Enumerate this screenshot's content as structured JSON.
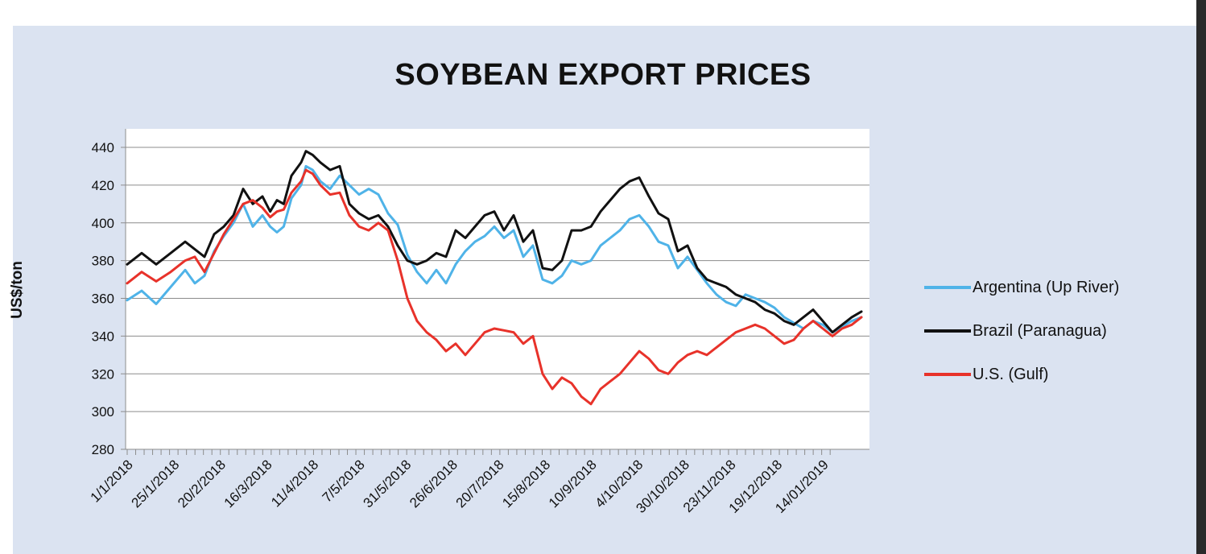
{
  "chart_data": {
    "type": "line",
    "title": "SOYBEAN EXPORT PRICES",
    "ylabel": "US$/ton",
    "xlabel": "",
    "ylim": [
      280,
      440
    ],
    "yticks": [
      280,
      300,
      320,
      340,
      360,
      380,
      400,
      420,
      440
    ],
    "grid": "horizontal",
    "legend_position": "right",
    "x_tick_labels": [
      "1/1/2018",
      "25/1/2018",
      "20/2/2018",
      "16/3/2018",
      "11/4/2018",
      "7/5/2018",
      "31/5/2018",
      "26/6/2018",
      "20/7/2018",
      "15/8/2018",
      "10/9/2018",
      "4/10/2018",
      "30/10/2018",
      "23/11/2018",
      "19/12/2018",
      "14/01/2019"
    ],
    "x": [
      "1/1/2018",
      "25/1/2018",
      "20/2/2018",
      "16/3/2018",
      "11/4/2018",
      "7/5/2018",
      "31/5/2018",
      "26/6/2018",
      "20/7/2018",
      "15/8/2018",
      "10/9/2018",
      "4/10/2018",
      "30/10/2018",
      "23/11/2018",
      "19/12/2018",
      "14/01/2019"
    ],
    "series": [
      {
        "name": "Argentina (Up River)",
        "color": "#4fb3e8",
        "values": [
          [
            0,
            359
          ],
          [
            1.5,
            364
          ],
          [
            3,
            357
          ],
          [
            4.5,
            366
          ],
          [
            6,
            375
          ],
          [
            7,
            368
          ],
          [
            8,
            372
          ],
          [
            9,
            385
          ],
          [
            10,
            393
          ],
          [
            11,
            400
          ],
          [
            12,
            410
          ],
          [
            13,
            398
          ],
          [
            14,
            404
          ],
          [
            14.8,
            398
          ],
          [
            15.5,
            395
          ],
          [
            16.2,
            398
          ],
          [
            17,
            413
          ],
          [
            18,
            420
          ],
          [
            18.5,
            430
          ],
          [
            19.2,
            428
          ],
          [
            20,
            422
          ],
          [
            21,
            418
          ],
          [
            22,
            425
          ],
          [
            23,
            420
          ],
          [
            24,
            415
          ],
          [
            25,
            418
          ],
          [
            26,
            415
          ],
          [
            27,
            405
          ],
          [
            28,
            399
          ],
          [
            29,
            383
          ],
          [
            30,
            374
          ],
          [
            31,
            368
          ],
          [
            32,
            375
          ],
          [
            33,
            368
          ],
          [
            34,
            378
          ],
          [
            35,
            385
          ],
          [
            36,
            390
          ],
          [
            37,
            393
          ],
          [
            38,
            398
          ],
          [
            39,
            392
          ],
          [
            40,
            396
          ],
          [
            41,
            382
          ],
          [
            42,
            388
          ],
          [
            43,
            370
          ],
          [
            44,
            368
          ],
          [
            45,
            372
          ],
          [
            46,
            380
          ],
          [
            47,
            378
          ],
          [
            48,
            380
          ],
          [
            49,
            388
          ],
          [
            50,
            392
          ],
          [
            51,
            396
          ],
          [
            52,
            402
          ],
          [
            53,
            404
          ],
          [
            54,
            398
          ],
          [
            55,
            390
          ],
          [
            56,
            388
          ],
          [
            57,
            376
          ],
          [
            58,
            382
          ],
          [
            59,
            375
          ],
          [
            60,
            368
          ],
          [
            61,
            362
          ],
          [
            62,
            358
          ],
          [
            63,
            356
          ],
          [
            64,
            362
          ],
          [
            65,
            360
          ],
          [
            66,
            358
          ],
          [
            67,
            355
          ],
          [
            68,
            350
          ],
          [
            69,
            347
          ],
          [
            70,
            344
          ],
          [
            71,
            348
          ],
          [
            72,
            346
          ],
          [
            73,
            342
          ],
          [
            74,
            345
          ],
          [
            75,
            348
          ],
          [
            76,
            350
          ]
        ]
      },
      {
        "name": "Brazil (Paranagua)",
        "color": "#111111",
        "values": [
          [
            0,
            378
          ],
          [
            1.5,
            384
          ],
          [
            3,
            378
          ],
          [
            4.5,
            384
          ],
          [
            6,
            390
          ],
          [
            7,
            386
          ],
          [
            8,
            382
          ],
          [
            9,
            394
          ],
          [
            10,
            398
          ],
          [
            11,
            404
          ],
          [
            12,
            418
          ],
          [
            13,
            410
          ],
          [
            14,
            414
          ],
          [
            14.8,
            406
          ],
          [
            15.5,
            412
          ],
          [
            16.2,
            410
          ],
          [
            17,
            425
          ],
          [
            18,
            432
          ],
          [
            18.5,
            438
          ],
          [
            19.2,
            436
          ],
          [
            20,
            432
          ],
          [
            21,
            428
          ],
          [
            22,
            430
          ],
          [
            23,
            410
          ],
          [
            24,
            405
          ],
          [
            25,
            402
          ],
          [
            26,
            404
          ],
          [
            27,
            398
          ],
          [
            28,
            388
          ],
          [
            29,
            380
          ],
          [
            30,
            378
          ],
          [
            31,
            380
          ],
          [
            32,
            384
          ],
          [
            33,
            382
          ],
          [
            34,
            396
          ],
          [
            35,
            392
          ],
          [
            36,
            398
          ],
          [
            37,
            404
          ],
          [
            38,
            406
          ],
          [
            39,
            396
          ],
          [
            40,
            404
          ],
          [
            41,
            390
          ],
          [
            42,
            396
          ],
          [
            43,
            376
          ],
          [
            44,
            375
          ],
          [
            45,
            380
          ],
          [
            46,
            396
          ],
          [
            47,
            396
          ],
          [
            48,
            398
          ],
          [
            49,
            406
          ],
          [
            50,
            412
          ],
          [
            51,
            418
          ],
          [
            52,
            422
          ],
          [
            53,
            424
          ],
          [
            54,
            414
          ],
          [
            55,
            405
          ],
          [
            56,
            402
          ],
          [
            57,
            385
          ],
          [
            58,
            388
          ],
          [
            59,
            376
          ],
          [
            60,
            370
          ],
          [
            61,
            368
          ],
          [
            62,
            366
          ],
          [
            63,
            362
          ],
          [
            64,
            360
          ],
          [
            65,
            358
          ],
          [
            66,
            354
          ],
          [
            67,
            352
          ],
          [
            68,
            348
          ],
          [
            69,
            346
          ],
          [
            70,
            350
          ],
          [
            71,
            354
          ],
          [
            72,
            348
          ],
          [
            73,
            342
          ],
          [
            74,
            346
          ],
          [
            75,
            350
          ],
          [
            76,
            353
          ]
        ]
      },
      {
        "name": "U.S. (Gulf)",
        "color": "#e8322a",
        "values": [
          [
            0,
            368
          ],
          [
            1.5,
            374
          ],
          [
            3,
            369
          ],
          [
            4.5,
            374
          ],
          [
            6,
            380
          ],
          [
            7,
            382
          ],
          [
            8,
            374
          ],
          [
            9,
            384
          ],
          [
            10,
            394
          ],
          [
            11,
            402
          ],
          [
            12,
            410
          ],
          [
            13,
            412
          ],
          [
            14,
            408
          ],
          [
            14.8,
            403
          ],
          [
            15.5,
            406
          ],
          [
            16.2,
            407
          ],
          [
            17,
            416
          ],
          [
            18,
            422
          ],
          [
            18.5,
            428
          ],
          [
            19.2,
            426
          ],
          [
            20,
            420
          ],
          [
            21,
            415
          ],
          [
            22,
            416
          ],
          [
            23,
            404
          ],
          [
            24,
            398
          ],
          [
            25,
            396
          ],
          [
            26,
            400
          ],
          [
            27,
            396
          ],
          [
            28,
            380
          ],
          [
            29,
            360
          ],
          [
            30,
            348
          ],
          [
            31,
            342
          ],
          [
            32,
            338
          ],
          [
            33,
            332
          ],
          [
            34,
            336
          ],
          [
            35,
            330
          ],
          [
            36,
            336
          ],
          [
            37,
            342
          ],
          [
            38,
            344
          ],
          [
            39,
            343
          ],
          [
            40,
            342
          ],
          [
            41,
            336
          ],
          [
            42,
            340
          ],
          [
            43,
            320
          ],
          [
            44,
            312
          ],
          [
            45,
            318
          ],
          [
            46,
            315
          ],
          [
            47,
            308
          ],
          [
            48,
            304
          ],
          [
            49,
            312
          ],
          [
            50,
            316
          ],
          [
            51,
            320
          ],
          [
            52,
            326
          ],
          [
            53,
            332
          ],
          [
            54,
            328
          ],
          [
            55,
            322
          ],
          [
            56,
            320
          ],
          [
            57,
            326
          ],
          [
            58,
            330
          ],
          [
            59,
            332
          ],
          [
            60,
            330
          ],
          [
            61,
            334
          ],
          [
            62,
            338
          ],
          [
            63,
            342
          ],
          [
            64,
            344
          ],
          [
            65,
            346
          ],
          [
            66,
            344
          ],
          [
            67,
            340
          ],
          [
            68,
            336
          ],
          [
            69,
            338
          ],
          [
            70,
            344
          ],
          [
            71,
            348
          ],
          [
            72,
            344
          ],
          [
            73,
            340
          ],
          [
            74,
            344
          ],
          [
            75,
            346
          ],
          [
            76,
            350
          ]
        ]
      }
    ]
  }
}
